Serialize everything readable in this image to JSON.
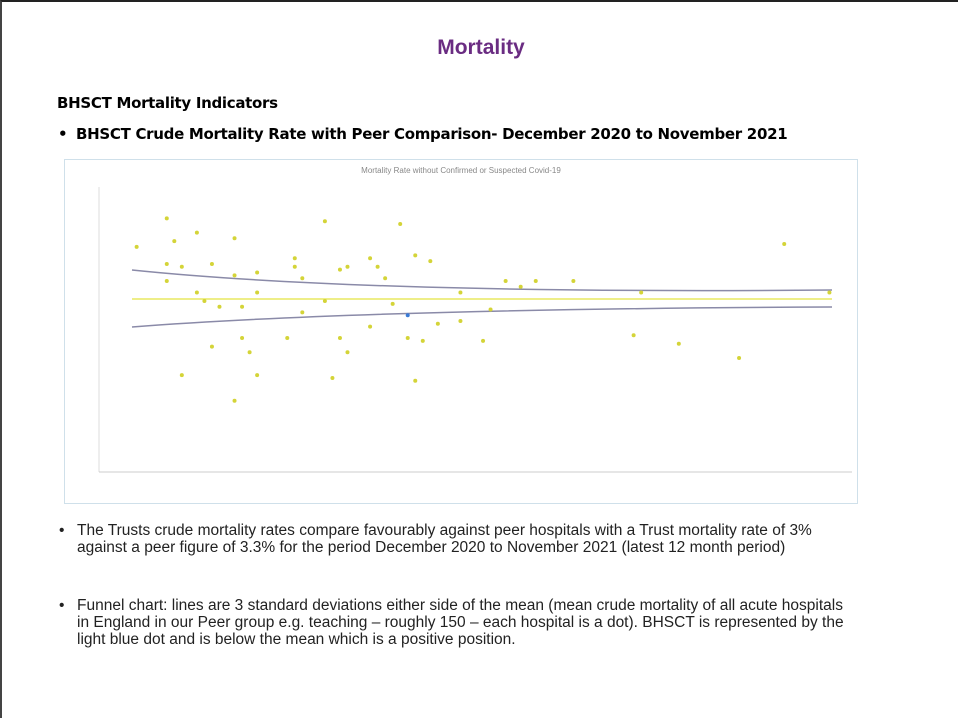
{
  "title": "Mortality",
  "section_heading": "BHSCT Mortality Indicators",
  "chart_heading": "BHSCT Crude Mortality Rate with Peer Comparison- December 2020 to November 2021",
  "chart_data": {
    "type": "scatter",
    "title": "Mortality Rate without Confirmed or Suspected Covid-19",
    "xlim": [
      0,
      100
    ],
    "ylim": [
      0,
      100
    ],
    "series": [
      {
        "color": "#d4d438",
        "x": [
          5,
          9,
          10,
          13,
          9,
          11,
          9,
          11,
          18,
          18,
          15,
          18,
          13,
          14,
          16,
          19,
          21,
          21,
          26,
          26,
          27,
          30,
          32,
          33,
          36,
          37,
          38,
          40,
          42,
          44,
          31,
          42,
          33,
          32,
          36,
          41,
          43,
          45,
          48,
          51,
          52,
          54,
          58,
          63,
          72,
          91,
          71,
          77,
          85,
          97,
          19,
          20,
          15,
          21,
          25,
          27,
          30,
          39,
          48,
          56
        ],
        "values": [
          79,
          89,
          81,
          84,
          73,
          72,
          67,
          34,
          25,
          82,
          73,
          69,
          63,
          60,
          58,
          58,
          63,
          70,
          75,
          72,
          68,
          88,
          71,
          72,
          75,
          72,
          68,
          87,
          76,
          74,
          33,
          32,
          42,
          47,
          51,
          47,
          46,
          52,
          53,
          46,
          57,
          67,
          67,
          67,
          63,
          80,
          48,
          45,
          40,
          63,
          47,
          42,
          44,
          34,
          47,
          56,
          60,
          59,
          63,
          65
        ]
      },
      {
        "color": "#3a7bd5",
        "x": [
          41
        ],
        "values": [
          55
        ]
      }
    ]
  },
  "bullets": [
    "The Trusts crude mortality rates compare favourably against peer hospitals with a Trust mortality rate of 3% against a peer figure of 3.3% for the period December 2020 to November  2021 (latest 12 month period)",
    "Funnel chart: lines are 3 standard deviations either side of the mean (mean crude mortality of all acute hospitals in England in our Peer group e.g. teaching – roughly 150 – each hospital is a dot). BHSCT is represented by the light blue dot and is below the mean which is a positive position."
  ]
}
